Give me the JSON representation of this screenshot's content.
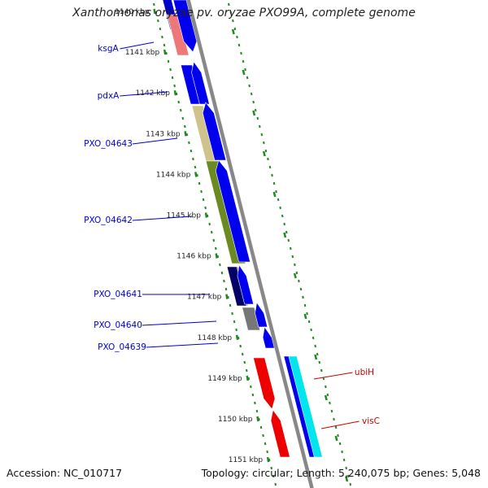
{
  "title": "Xanthomonas oryzae pv. oryzae PXO99A, complete genome",
  "footer": {
    "accession": "Accession: NC_010717",
    "summary": "Topology: circular; Length: 5,240,075 bp; Genes: 5,048"
  },
  "colors": {
    "blue_gene": "#0000ee",
    "dark_navy": "#000066",
    "salmon": "#ee7777",
    "light_khaki": "#cfc28a",
    "olive_green": "#6b8a22",
    "grey": "#777777",
    "red": "#ee0000",
    "cyan": "#00e5ee",
    "backbone": "#888888",
    "ticks": "#228822",
    "left_label": "#0000cc",
    "right_label": "#cc0000"
  },
  "ticks": [
    {
      "label": "1140 kbp"
    },
    {
      "label": "1141 kbp"
    },
    {
      "label": "1142 kbp"
    },
    {
      "label": "1143 kbp"
    },
    {
      "label": "1144 kbp"
    },
    {
      "label": "1145 kbp"
    },
    {
      "label": "1146 kbp"
    },
    {
      "label": "1147 kbp"
    },
    {
      "label": "1148 kbp"
    },
    {
      "label": "1149 kbp"
    },
    {
      "label": "1150 kbp"
    },
    {
      "label": "1151 kbp"
    }
  ],
  "gene_labels_left": [
    {
      "text": "ksgA"
    },
    {
      "text": "pdxA"
    },
    {
      "text": "PXO_04643"
    },
    {
      "text": "PXO_04642"
    },
    {
      "text": "PXO_04641"
    },
    {
      "text": "PXO_04640"
    },
    {
      "text": "PXO_04639"
    }
  ],
  "gene_labels_right": [
    {
      "text": "ubiH"
    },
    {
      "text": "visC"
    }
  ]
}
